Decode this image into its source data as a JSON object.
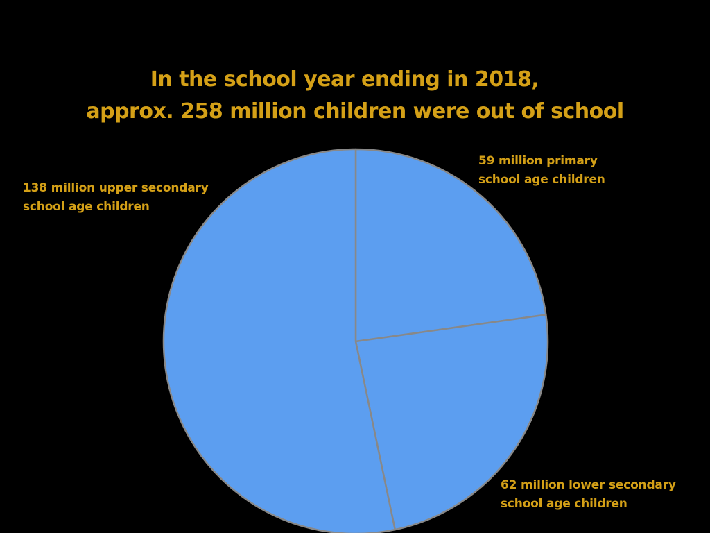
{
  "colors": {
    "background": "#000000",
    "text": "#D4A017",
    "slice_fill": "#5C9EF0",
    "slice_stroke": "#888888"
  },
  "chart_data": {
    "type": "pie",
    "title": [
      "In the school year ending in 2018,",
      "approx. 258 million children were out of school"
    ],
    "slices": [
      {
        "label": [
          "59 million primary",
          "school age children"
        ],
        "value": 59
      },
      {
        "label": [
          "62 million lower secondary",
          "school age children"
        ],
        "value": 62
      },
      {
        "label": [
          "138 million upper secondary",
          "school age children"
        ],
        "value": 138
      }
    ]
  }
}
